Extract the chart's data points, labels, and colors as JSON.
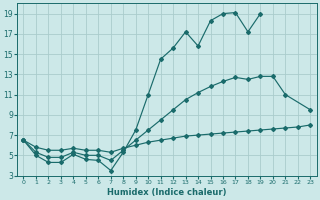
{
  "xlabel": "Humidex (Indice chaleur)",
  "bg_color": "#cce8e8",
  "grid_color": "#aacccc",
  "line_color": "#1a6b6b",
  "xlim": [
    -0.5,
    23.5
  ],
  "ylim": [
    3,
    20
  ],
  "xticks": [
    0,
    1,
    2,
    3,
    4,
    5,
    6,
    7,
    8,
    9,
    10,
    11,
    12,
    13,
    14,
    15,
    16,
    17,
    18,
    19,
    20,
    21,
    22,
    23
  ],
  "yticks": [
    3,
    5,
    7,
    9,
    11,
    13,
    15,
    17,
    19
  ],
  "curve1_x": [
    0,
    1,
    2,
    3,
    4,
    5,
    6,
    7,
    8,
    9,
    10,
    11,
    12,
    13,
    14,
    15,
    16,
    17,
    18,
    19
  ],
  "curve1_y": [
    6.5,
    5.0,
    4.3,
    4.3,
    5.1,
    4.6,
    4.5,
    3.5,
    5.3,
    7.5,
    11.0,
    14.5,
    15.6,
    17.2,
    15.8,
    18.3,
    19.0,
    19.1,
    17.2,
    19.0
  ],
  "curve2_x": [
    0,
    1,
    2,
    3,
    4,
    5,
    6,
    7,
    8,
    9,
    10,
    11,
    12,
    13,
    14,
    15,
    16,
    17,
    18,
    19,
    20,
    21,
    23
  ],
  "curve2_y": [
    6.5,
    5.3,
    4.8,
    4.8,
    5.3,
    5.0,
    5.0,
    4.5,
    5.5,
    6.5,
    7.5,
    8.5,
    9.5,
    10.5,
    11.2,
    11.8,
    12.3,
    12.7,
    12.5,
    12.8,
    12.8,
    11.0,
    9.5
  ],
  "curve3_x": [
    0,
    1,
    2,
    3,
    4,
    5,
    6,
    7,
    8,
    9,
    10,
    11,
    12,
    13,
    14,
    15,
    16,
    17,
    18,
    19,
    20,
    21,
    22,
    23
  ],
  "curve3_y": [
    6.5,
    5.8,
    5.5,
    5.5,
    5.7,
    5.5,
    5.5,
    5.3,
    5.7,
    6.0,
    6.3,
    6.5,
    6.7,
    6.9,
    7.0,
    7.1,
    7.2,
    7.3,
    7.4,
    7.5,
    7.6,
    7.7,
    7.8,
    8.0
  ]
}
